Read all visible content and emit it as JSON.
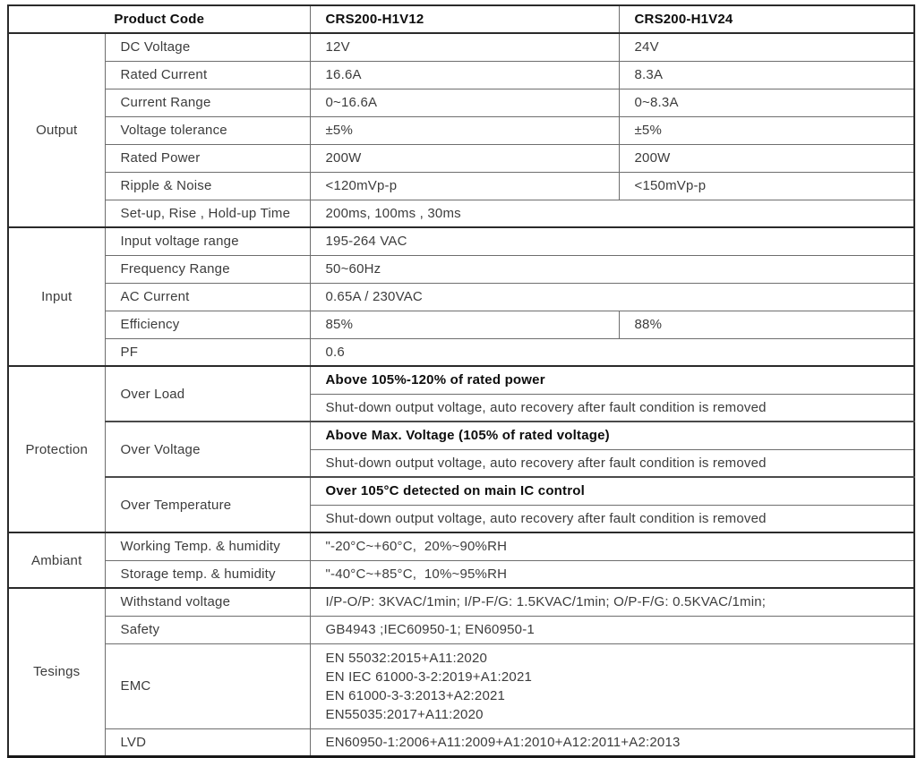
{
  "colors": {
    "background": "#ffffff",
    "border_dark": "#2a2a2a",
    "border_light": "#6e6e6e",
    "text": "#3c3c3c",
    "text_bold": "#0d0d0d"
  },
  "header": {
    "product_code": "Product Code",
    "model_12": "CRS200-H1V12",
    "model_24": "CRS200-H1V24"
  },
  "output": {
    "group": "Output",
    "rows": [
      {
        "label": "DC Voltage",
        "v12": "12V",
        "v24": "24V"
      },
      {
        "label": "Rated Current",
        "v12": "16.6A",
        "v24": "8.3A"
      },
      {
        "label": "Current Range",
        "v12": "0~16.6A",
        "v24": "0~8.3A"
      },
      {
        "label": "Voltage tolerance",
        "v12": "±5%",
        "v24": "±5%"
      },
      {
        "label": "Rated Power",
        "v12": "200W",
        "v24": "200W"
      },
      {
        "label": "Ripple & Noise",
        "v12": "<120mVp-p",
        "v24": "<150mVp-p"
      }
    ],
    "setup_row": {
      "label": "Set-up, Rise , Hold-up Time",
      "value": "200ms, 100ms , 30ms"
    }
  },
  "input": {
    "group": "Input",
    "voltage_range": {
      "label": "Input voltage range",
      "value": "195-264 VAC"
    },
    "frequency_range": {
      "label": "Frequency Range",
      "value": "50~60Hz"
    },
    "ac_current": {
      "label": "AC Current",
      "value": "0.65A / 230VAC"
    },
    "efficiency": {
      "label": "Efficiency",
      "v12": "85%",
      "v24": "88%"
    },
    "pf": {
      "label": "PF",
      "value": "0.6"
    }
  },
  "protection": {
    "group": "Protection",
    "items": [
      {
        "label": "Over Load",
        "condition": "Above 105%-120% of rated power",
        "action": "Shut-down output voltage, auto recovery after fault condition is removed"
      },
      {
        "label": "Over Voltage",
        "condition": "Above Max. Voltage (105% of rated voltage)",
        "action": "Shut-down output voltage, auto recovery after fault condition is removed"
      },
      {
        "label": "Over Temperature",
        "condition": "Over 105°C detected on main IC control",
        "action": "Shut-down output voltage, auto recovery after fault condition is removed"
      }
    ]
  },
  "ambiant": {
    "group": "Ambiant",
    "working": {
      "label": "Working Temp. & humidity",
      "value": "\"-20°C~+60°C,  20%~90%RH"
    },
    "storage": {
      "label": "Storage temp. & humidity",
      "value": "\"-40°C~+85°C,  10%~95%RH"
    }
  },
  "tesings": {
    "group": "Tesings",
    "withstand": {
      "label": "Withstand voltage",
      "value": "I/P-O/P: 3KVAC/1min; I/P-F/G: 1.5KVAC/1min; O/P-F/G: 0.5KVAC/1min;"
    },
    "safety": {
      "label": "Safety",
      "value": "GB4943 ;IEC60950-1; EN60950-1"
    },
    "emc": {
      "label": "EMC",
      "lines": [
        "EN 55032:2015+A11:2020",
        "EN IEC 61000-3-2:2019+A1:2021",
        "EN 61000-3-3:2013+A2:2021",
        "EN55035:2017+A11:2020"
      ]
    },
    "lvd": {
      "label": "LVD",
      "value": "EN60950-1:2006+A11:2009+A1:2010+A12:2011+A2:2013"
    }
  }
}
